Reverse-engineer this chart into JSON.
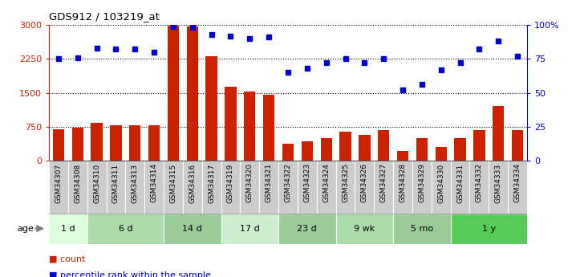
{
  "title": "GDS912 / 103219_at",
  "categories": [
    "GSM34307",
    "GSM34308",
    "GSM34310",
    "GSM34311",
    "GSM34313",
    "GSM34314",
    "GSM34315",
    "GSM34316",
    "GSM34317",
    "GSM34319",
    "GSM34320",
    "GSM34321",
    "GSM34322",
    "GSM34323",
    "GSM34324",
    "GSM34325",
    "GSM34326",
    "GSM34327",
    "GSM34328",
    "GSM34329",
    "GSM34330",
    "GSM34331",
    "GSM34332",
    "GSM34333",
    "GSM34334"
  ],
  "count_values": [
    700,
    730,
    840,
    790,
    790,
    790,
    2980,
    2960,
    2300,
    1640,
    1520,
    1460,
    370,
    430,
    500,
    640,
    570,
    680,
    220,
    500,
    310,
    490,
    680,
    1200,
    680
  ],
  "percentile_values": [
    75,
    76,
    83,
    82,
    82,
    80,
    99,
    98,
    93,
    92,
    90,
    91,
    65,
    68,
    72,
    75,
    72,
    75,
    52,
    56,
    67,
    72,
    82,
    88,
    77
  ],
  "age_groups": [
    {
      "label": "1 d",
      "start": 0,
      "end": 1,
      "color": "#ddffdd"
    },
    {
      "label": "6 d",
      "start": 2,
      "end": 5,
      "color": "#aaddaa"
    },
    {
      "label": "14 d",
      "start": 6,
      "end": 8,
      "color": "#99cc99"
    },
    {
      "label": "17 d",
      "start": 9,
      "end": 11,
      "color": "#cceecc"
    },
    {
      "label": "23 d",
      "start": 12,
      "end": 14,
      "color": "#99cc99"
    },
    {
      "label": "9 wk",
      "start": 15,
      "end": 17,
      "color": "#aaddaa"
    },
    {
      "label": "5 mo",
      "start": 18,
      "end": 20,
      "color": "#99cc99"
    },
    {
      "label": "1 y",
      "start": 21,
      "end": 24,
      "color": "#55cc55"
    }
  ],
  "bar_color": "#cc2200",
  "dot_color": "#0000cc",
  "left_ylim": [
    0,
    3000
  ],
  "left_yticks": [
    0,
    750,
    1500,
    2250,
    3000
  ],
  "right_ylim": [
    0,
    100
  ],
  "right_yticks": [
    0,
    25,
    50,
    75,
    100
  ],
  "grid_color": "#000000",
  "bg_color": "#ffffff",
  "age_label": "age",
  "legend_count": "count",
  "legend_percentile": "percentile rank within the sample",
  "xlabel_bg": "#cccccc"
}
